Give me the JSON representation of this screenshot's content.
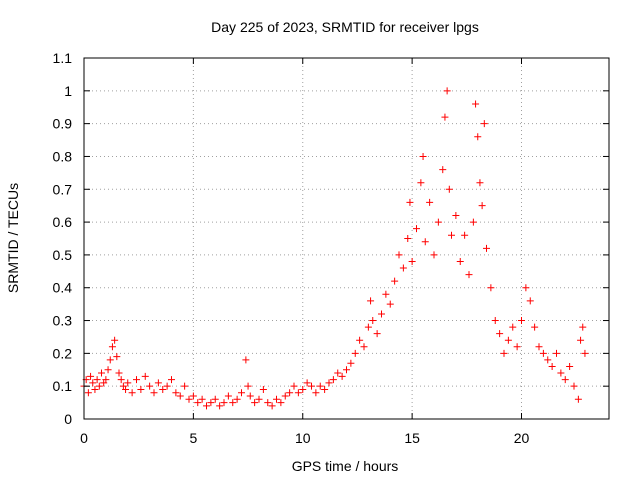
{
  "chart_data": {
    "type": "scatter",
    "title": "Day 225 of 2023, SRMTID for receiver lpgs",
    "xlabel": "GPS time / hours",
    "ylabel": "SRMTID / TECUs",
    "xlim": [
      0,
      24
    ],
    "ylim": [
      0,
      1.1
    ],
    "x_ticks": [
      0,
      5,
      10,
      15,
      20
    ],
    "x_tick_labels": [
      "0",
      "5",
      "10",
      "15",
      "20"
    ],
    "y_ticks": [
      0,
      0.1,
      0.2,
      0.3,
      0.4,
      0.5,
      0.6,
      0.7,
      0.8,
      0.9,
      1,
      1.1
    ],
    "y_tick_labels": [
      "0",
      "0.1",
      "0.2",
      "0.3",
      "0.4",
      "0.5",
      "0.6",
      "0.7",
      "0.8",
      "0.9",
      "1",
      "1.1"
    ],
    "grid": true,
    "marker": "+",
    "series_color": "#ff0000",
    "series": [
      {
        "name": "SRMTID",
        "points": [
          [
            0.0,
            0.1
          ],
          [
            0.1,
            0.12
          ],
          [
            0.2,
            0.08
          ],
          [
            0.3,
            0.13
          ],
          [
            0.4,
            0.11
          ],
          [
            0.5,
            0.09
          ],
          [
            0.6,
            0.12
          ],
          [
            0.7,
            0.1
          ],
          [
            0.8,
            0.14
          ],
          [
            0.9,
            0.11
          ],
          [
            1.0,
            0.12
          ],
          [
            1.1,
            0.15
          ],
          [
            1.2,
            0.18
          ],
          [
            1.3,
            0.22
          ],
          [
            1.4,
            0.24
          ],
          [
            1.5,
            0.19
          ],
          [
            1.6,
            0.14
          ],
          [
            1.7,
            0.12
          ],
          [
            1.8,
            0.1
          ],
          [
            1.9,
            0.09
          ],
          [
            2.0,
            0.11
          ],
          [
            2.2,
            0.08
          ],
          [
            2.4,
            0.12
          ],
          [
            2.6,
            0.09
          ],
          [
            2.8,
            0.13
          ],
          [
            3.0,
            0.1
          ],
          [
            3.2,
            0.08
          ],
          [
            3.4,
            0.11
          ],
          [
            3.6,
            0.09
          ],
          [
            3.8,
            0.1
          ],
          [
            4.0,
            0.12
          ],
          [
            4.2,
            0.08
          ],
          [
            4.4,
            0.07
          ],
          [
            4.6,
            0.1
          ],
          [
            4.8,
            0.06
          ],
          [
            5.0,
            0.07
          ],
          [
            5.2,
            0.05
          ],
          [
            5.4,
            0.06
          ],
          [
            5.6,
            0.04
          ],
          [
            5.8,
            0.05
          ],
          [
            6.0,
            0.06
          ],
          [
            6.2,
            0.04
          ],
          [
            6.4,
            0.05
          ],
          [
            6.6,
            0.07
          ],
          [
            6.8,
            0.05
          ],
          [
            7.0,
            0.06
          ],
          [
            7.2,
            0.08
          ],
          [
            7.4,
            0.18
          ],
          [
            7.5,
            0.1
          ],
          [
            7.6,
            0.07
          ],
          [
            7.8,
            0.05
          ],
          [
            8.0,
            0.06
          ],
          [
            8.2,
            0.09
          ],
          [
            8.4,
            0.05
          ],
          [
            8.6,
            0.04
          ],
          [
            8.8,
            0.06
          ],
          [
            9.0,
            0.05
          ],
          [
            9.2,
            0.07
          ],
          [
            9.4,
            0.08
          ],
          [
            9.6,
            0.1
          ],
          [
            9.8,
            0.08
          ],
          [
            10.0,
            0.09
          ],
          [
            10.2,
            0.11
          ],
          [
            10.4,
            0.1
          ],
          [
            10.6,
            0.08
          ],
          [
            10.8,
            0.1
          ],
          [
            11.0,
            0.09
          ],
          [
            11.2,
            0.11
          ],
          [
            11.4,
            0.12
          ],
          [
            11.6,
            0.14
          ],
          [
            11.8,
            0.13
          ],
          [
            12.0,
            0.15
          ],
          [
            12.2,
            0.17
          ],
          [
            12.4,
            0.2
          ],
          [
            12.6,
            0.24
          ],
          [
            12.8,
            0.22
          ],
          [
            13.0,
            0.28
          ],
          [
            13.1,
            0.36
          ],
          [
            13.2,
            0.3
          ],
          [
            13.4,
            0.26
          ],
          [
            13.6,
            0.32
          ],
          [
            13.8,
            0.38
          ],
          [
            14.0,
            0.35
          ],
          [
            14.2,
            0.42
          ],
          [
            14.4,
            0.5
          ],
          [
            14.6,
            0.46
          ],
          [
            14.8,
            0.55
          ],
          [
            14.9,
            0.66
          ],
          [
            15.0,
            0.48
          ],
          [
            15.2,
            0.58
          ],
          [
            15.4,
            0.72
          ],
          [
            15.5,
            0.8
          ],
          [
            15.6,
            0.54
          ],
          [
            15.8,
            0.66
          ],
          [
            16.0,
            0.5
          ],
          [
            16.2,
            0.6
          ],
          [
            16.4,
            0.76
          ],
          [
            16.5,
            0.92
          ],
          [
            16.6,
            1.0
          ],
          [
            16.7,
            0.7
          ],
          [
            16.8,
            0.56
          ],
          [
            17.0,
            0.62
          ],
          [
            17.2,
            0.48
          ],
          [
            17.4,
            0.56
          ],
          [
            17.6,
            0.44
          ],
          [
            17.8,
            0.6
          ],
          [
            17.9,
            0.96
          ],
          [
            18.0,
            0.86
          ],
          [
            18.1,
            0.72
          ],
          [
            18.2,
            0.65
          ],
          [
            18.3,
            0.9
          ],
          [
            18.4,
            0.52
          ],
          [
            18.6,
            0.4
          ],
          [
            18.8,
            0.3
          ],
          [
            19.0,
            0.26
          ],
          [
            19.2,
            0.2
          ],
          [
            19.4,
            0.24
          ],
          [
            19.6,
            0.28
          ],
          [
            19.8,
            0.22
          ],
          [
            20.0,
            0.3
          ],
          [
            20.2,
            0.4
          ],
          [
            20.4,
            0.36
          ],
          [
            20.6,
            0.28
          ],
          [
            20.8,
            0.22
          ],
          [
            21.0,
            0.2
          ],
          [
            21.2,
            0.18
          ],
          [
            21.4,
            0.16
          ],
          [
            21.6,
            0.2
          ],
          [
            21.8,
            0.14
          ],
          [
            22.0,
            0.12
          ],
          [
            22.2,
            0.16
          ],
          [
            22.4,
            0.1
          ],
          [
            22.6,
            0.06
          ],
          [
            22.7,
            0.24
          ],
          [
            22.8,
            0.28
          ],
          [
            22.9,
            0.2
          ]
        ]
      }
    ]
  }
}
